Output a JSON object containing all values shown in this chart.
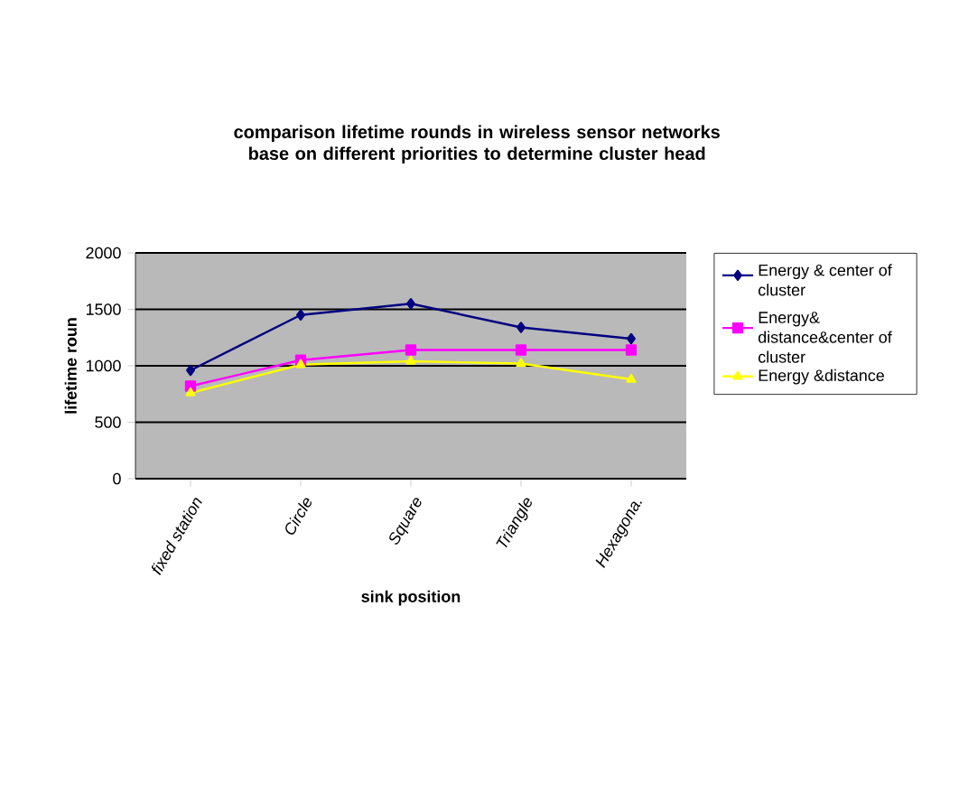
{
  "chart_data": {
    "type": "line",
    "title": "comparison lifetime rounds in wireless  sensor networks base on different priorities to determine cluster head",
    "xlabel": "sink position",
    "ylabel": "lifetime roun",
    "categories": [
      "fixed station",
      "Circle",
      "Square",
      "Triangle",
      "Hexagona."
    ],
    "series": [
      {
        "name": "Energy & center of cluster",
        "color": "#000080",
        "marker": "diamond",
        "values": [
          960,
          1450,
          1550,
          1340,
          1240
        ]
      },
      {
        "name": "Energy& distance&center of cluster",
        "color": "#ff00ff",
        "marker": "square",
        "values": [
          820,
          1050,
          1140,
          1140,
          1140
        ]
      },
      {
        "name": "Energy &distance",
        "color": "#ffff00",
        "marker": "triangle",
        "values": [
          760,
          1010,
          1040,
          1020,
          880
        ]
      }
    ],
    "ylim": [
      0,
      2000
    ],
    "yticks": [
      0,
      500,
      1000,
      1500,
      2000
    ],
    "grid": "y",
    "legend": "right"
  }
}
